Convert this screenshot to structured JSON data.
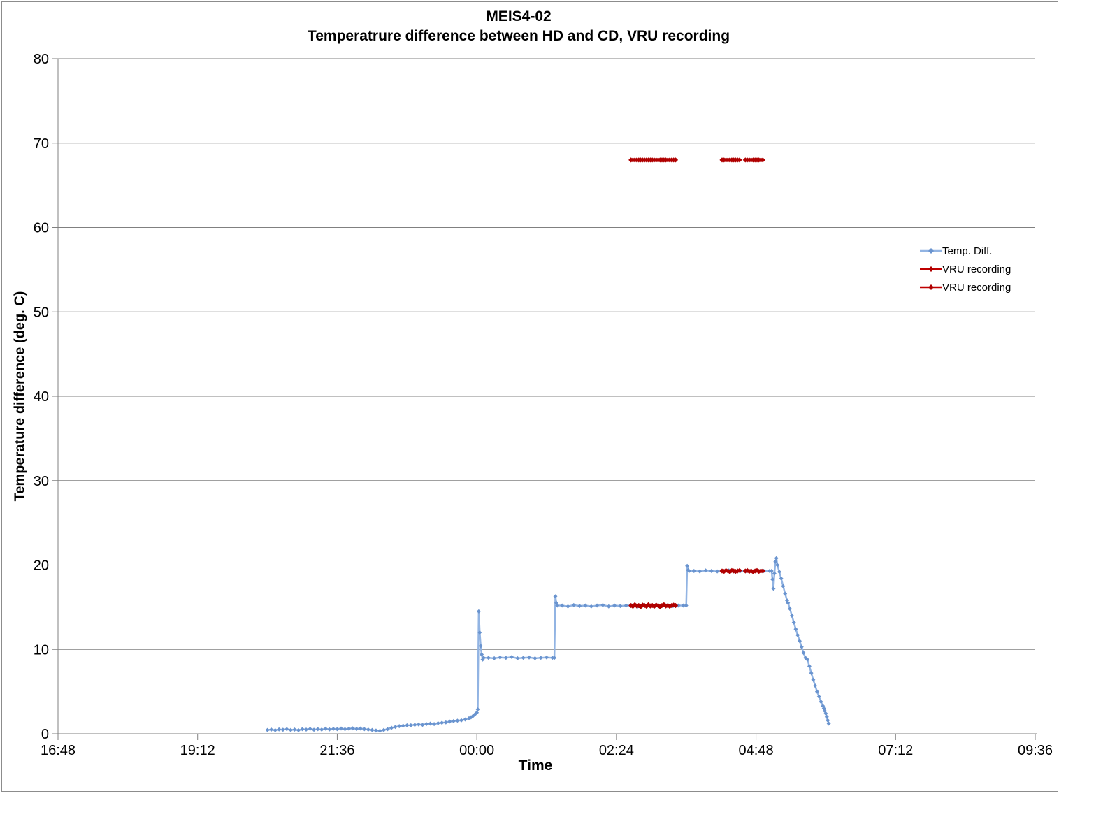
{
  "chart_data": {
    "type": "line",
    "title": "MEIS4-02",
    "subtitle": "Temperatrure difference between HD and CD, VRU recording",
    "xlabel": "Time",
    "ylabel": "Temperature difference (deg. C)",
    "x_ticks": [
      "16:48",
      "19:12",
      "21:36",
      "00:00",
      "02:24",
      "04:48",
      "07:12",
      "09:36"
    ],
    "x_tick_interval_minutes": 144,
    "x_unit": "minutes after 16:48",
    "x_range_minutes": [
      0,
      1008
    ],
    "y_ticks": [
      0,
      10,
      20,
      30,
      40,
      50,
      60,
      70,
      80
    ],
    "ylim": [
      0,
      80
    ],
    "grid": "horizontal",
    "legend_position": "right",
    "colors": {
      "grid": "#808080",
      "axis": "#808080",
      "temp_diff_line": "#92B4E3",
      "temp_diff_marker": "#6A94CF",
      "vru_line": "#C00000",
      "vru_marker": "#B00000"
    },
    "series": [
      {
        "name": "Temp. Diff.",
        "color": "#92B4E3",
        "marker_color": "#6A94CF",
        "segments": [
          [
            [
              216,
              0.45
            ],
            [
              220,
              0.5
            ],
            [
              224,
              0.42
            ],
            [
              228,
              0.52
            ],
            [
              232,
              0.48
            ],
            [
              236,
              0.55
            ],
            [
              240,
              0.45
            ],
            [
              244,
              0.5
            ],
            [
              248,
              0.42
            ],
            [
              252,
              0.55
            ],
            [
              256,
              0.5
            ],
            [
              260,
              0.58
            ],
            [
              264,
              0.48
            ],
            [
              268,
              0.55
            ],
            [
              272,
              0.5
            ],
            [
              276,
              0.6
            ],
            [
              280,
              0.52
            ],
            [
              284,
              0.58
            ],
            [
              288,
              0.55
            ],
            [
              292,
              0.62
            ],
            [
              296,
              0.55
            ],
            [
              300,
              0.6
            ],
            [
              304,
              0.65
            ],
            [
              308,
              0.58
            ],
            [
              312,
              0.62
            ],
            [
              316,
              0.55
            ],
            [
              320,
              0.5
            ],
            [
              324,
              0.45
            ],
            [
              328,
              0.38
            ],
            [
              332,
              0.35
            ],
            [
              336,
              0.45
            ],
            [
              340,
              0.55
            ],
            [
              344,
              0.7
            ],
            [
              348,
              0.8
            ],
            [
              352,
              0.9
            ],
            [
              356,
              0.95
            ],
            [
              360,
              1.0
            ],
            [
              364,
              1.0
            ],
            [
              368,
              1.05
            ],
            [
              372,
              1.1
            ],
            [
              376,
              1.05
            ],
            [
              380,
              1.15
            ],
            [
              384,
              1.2
            ],
            [
              388,
              1.15
            ],
            [
              392,
              1.25
            ],
            [
              396,
              1.3
            ],
            [
              400,
              1.35
            ],
            [
              404,
              1.45
            ],
            [
              408,
              1.5
            ],
            [
              412,
              1.55
            ],
            [
              416,
              1.6
            ],
            [
              420,
              1.7
            ],
            [
              424,
              1.85
            ],
            [
              426,
              1.95
            ],
            [
              428,
              2.1
            ],
            [
              430,
              2.3
            ],
            [
              432,
              2.5
            ],
            [
              433,
              2.9
            ],
            [
              434,
              14.5
            ],
            [
              435,
              12.0
            ],
            [
              436,
              10.4
            ],
            [
              437,
              9.4
            ],
            [
              438,
              8.8
            ],
            [
              439,
              9.0
            ],
            [
              444,
              9.0
            ],
            [
              450,
              8.95
            ],
            [
              456,
              9.05
            ],
            [
              462,
              9.0
            ],
            [
              468,
              9.1
            ],
            [
              474,
              8.95
            ],
            [
              480,
              9.0
            ],
            [
              486,
              9.05
            ],
            [
              492,
              8.95
            ],
            [
              498,
              9.0
            ],
            [
              504,
              9.05
            ],
            [
              510,
              9.0
            ],
            [
              512,
              9.0
            ],
            [
              513,
              16.3
            ],
            [
              514,
              15.5
            ],
            [
              515,
              15.2
            ],
            [
              520,
              15.2
            ],
            [
              526,
              15.1
            ],
            [
              532,
              15.25
            ],
            [
              538,
              15.15
            ],
            [
              544,
              15.2
            ],
            [
              550,
              15.1
            ],
            [
              556,
              15.2
            ],
            [
              562,
              15.25
            ],
            [
              568,
              15.1
            ],
            [
              574,
              15.2
            ],
            [
              580,
              15.15
            ],
            [
              586,
              15.2
            ],
            [
              592,
              15.2
            ],
            [
              598,
              15.1
            ],
            [
              604,
              15.25
            ],
            [
              610,
              15.15
            ],
            [
              616,
              15.2
            ],
            [
              622,
              15.1
            ],
            [
              628,
              15.2
            ],
            [
              634,
              15.15
            ],
            [
              640,
              15.2
            ],
            [
              645,
              15.2
            ],
            [
              648,
              15.2
            ],
            [
              649,
              19.9
            ],
            [
              650,
              19.4
            ],
            [
              651,
              19.3
            ],
            [
              656,
              19.3
            ],
            [
              662,
              19.25
            ],
            [
              668,
              19.35
            ],
            [
              674,
              19.3
            ],
            [
              680,
              19.25
            ],
            [
              686,
              19.3
            ],
            [
              692,
              19.35
            ],
            [
              698,
              19.25
            ],
            [
              704,
              19.3
            ],
            [
              710,
              19.3
            ],
            [
              716,
              19.25
            ],
            [
              722,
              19.3
            ],
            [
              728,
              19.3
            ],
            [
              734,
              19.3
            ],
            [
              736,
              19.3
            ],
            [
              737,
              18.3
            ],
            [
              738,
              17.2
            ],
            [
              739,
              19.0
            ],
            [
              740,
              20.4
            ],
            [
              741,
              20.8
            ],
            [
              742,
              20.0
            ],
            [
              744,
              19.2
            ],
            [
              746,
              18.4
            ],
            [
              748,
              17.5
            ],
            [
              750,
              16.6
            ],
            [
              752,
              15.8
            ],
            [
              753,
              15.5
            ],
            [
              755,
              14.8
            ],
            [
              757,
              14.0
            ],
            [
              759,
              13.2
            ],
            [
              761,
              12.4
            ],
            [
              763,
              11.7
            ],
            [
              765,
              11.0
            ],
            [
              767,
              10.3
            ],
            [
              769,
              9.6
            ],
            [
              771,
              9.0
            ],
            [
              773,
              8.8
            ],
            [
              775,
              8.0
            ],
            [
              777,
              7.2
            ],
            [
              779,
              6.4
            ],
            [
              781,
              5.7
            ],
            [
              783,
              5.0
            ],
            [
              785,
              4.4
            ],
            [
              787,
              3.8
            ],
            [
              789,
              3.3
            ],
            [
              790,
              3.0
            ],
            [
              791,
              2.7
            ],
            [
              792,
              2.4
            ],
            [
              793,
              2.0
            ],
            [
              794,
              1.6
            ],
            [
              795,
              1.2
            ]
          ]
        ]
      },
      {
        "name": "VRU recording",
        "color": "#C00000",
        "marker_color": "#B00000",
        "segments": [
          [
            [
              591,
              68
            ],
            [
              593,
              68
            ],
            [
              595,
              68
            ],
            [
              597,
              68
            ],
            [
              599,
              68
            ],
            [
              601,
              68
            ],
            [
              603,
              68
            ],
            [
              605,
              68
            ],
            [
              607,
              68
            ],
            [
              609,
              68
            ],
            [
              611,
              68
            ],
            [
              613,
              68
            ],
            [
              615,
              68
            ],
            [
              617,
              68
            ],
            [
              619,
              68
            ],
            [
              621,
              68
            ],
            [
              623,
              68
            ],
            [
              625,
              68
            ],
            [
              627,
              68
            ],
            [
              629,
              68
            ],
            [
              631,
              68
            ],
            [
              633,
              68
            ],
            [
              635,
              68
            ],
            [
              637,
              68
            ]
          ],
          [
            [
              685,
              68
            ],
            [
              687,
              68
            ],
            [
              689,
              68
            ],
            [
              691,
              68
            ],
            [
              693,
              68
            ],
            [
              695,
              68
            ],
            [
              697,
              68
            ],
            [
              699,
              68
            ],
            [
              701,
              68
            ],
            [
              703,
              68
            ]
          ],
          [
            [
              709,
              68
            ],
            [
              711,
              68
            ],
            [
              713,
              68
            ],
            [
              715,
              68
            ],
            [
              717,
              68
            ],
            [
              719,
              68
            ],
            [
              721,
              68
            ],
            [
              723,
              68
            ],
            [
              725,
              68
            ],
            [
              727,
              68
            ]
          ]
        ]
      },
      {
        "name": "VRU recording",
        "color": "#C00000",
        "marker_color": "#B00000",
        "segments": [
          [
            [
              591,
              15.2
            ],
            [
              593,
              15.1
            ],
            [
              595,
              15.3
            ],
            [
              597,
              15.15
            ],
            [
              599,
              15.2
            ],
            [
              601,
              15.05
            ],
            [
              603,
              15.25
            ],
            [
              605,
              15.2
            ],
            [
              607,
              15.1
            ],
            [
              609,
              15.3
            ],
            [
              611,
              15.15
            ],
            [
              613,
              15.2
            ],
            [
              615,
              15.1
            ],
            [
              617,
              15.25
            ],
            [
              619,
              15.2
            ],
            [
              621,
              15.05
            ],
            [
              623,
              15.2
            ],
            [
              625,
              15.3
            ],
            [
              627,
              15.15
            ],
            [
              629,
              15.2
            ],
            [
              631,
              15.1
            ],
            [
              633,
              15.2
            ],
            [
              635,
              15.25
            ],
            [
              637,
              15.2
            ]
          ],
          [
            [
              685,
              19.3
            ],
            [
              687,
              19.25
            ],
            [
              689,
              19.35
            ],
            [
              691,
              19.3
            ],
            [
              693,
              19.2
            ],
            [
              695,
              19.35
            ],
            [
              697,
              19.3
            ],
            [
              699,
              19.25
            ],
            [
              701,
              19.3
            ],
            [
              703,
              19.35
            ]
          ],
          [
            [
              709,
              19.3
            ],
            [
              711,
              19.35
            ],
            [
              713,
              19.25
            ],
            [
              715,
              19.3
            ],
            [
              717,
              19.2
            ],
            [
              719,
              19.3
            ],
            [
              721,
              19.35
            ],
            [
              723,
              19.25
            ],
            [
              725,
              19.3
            ],
            [
              727,
              19.3
            ]
          ]
        ]
      }
    ]
  }
}
